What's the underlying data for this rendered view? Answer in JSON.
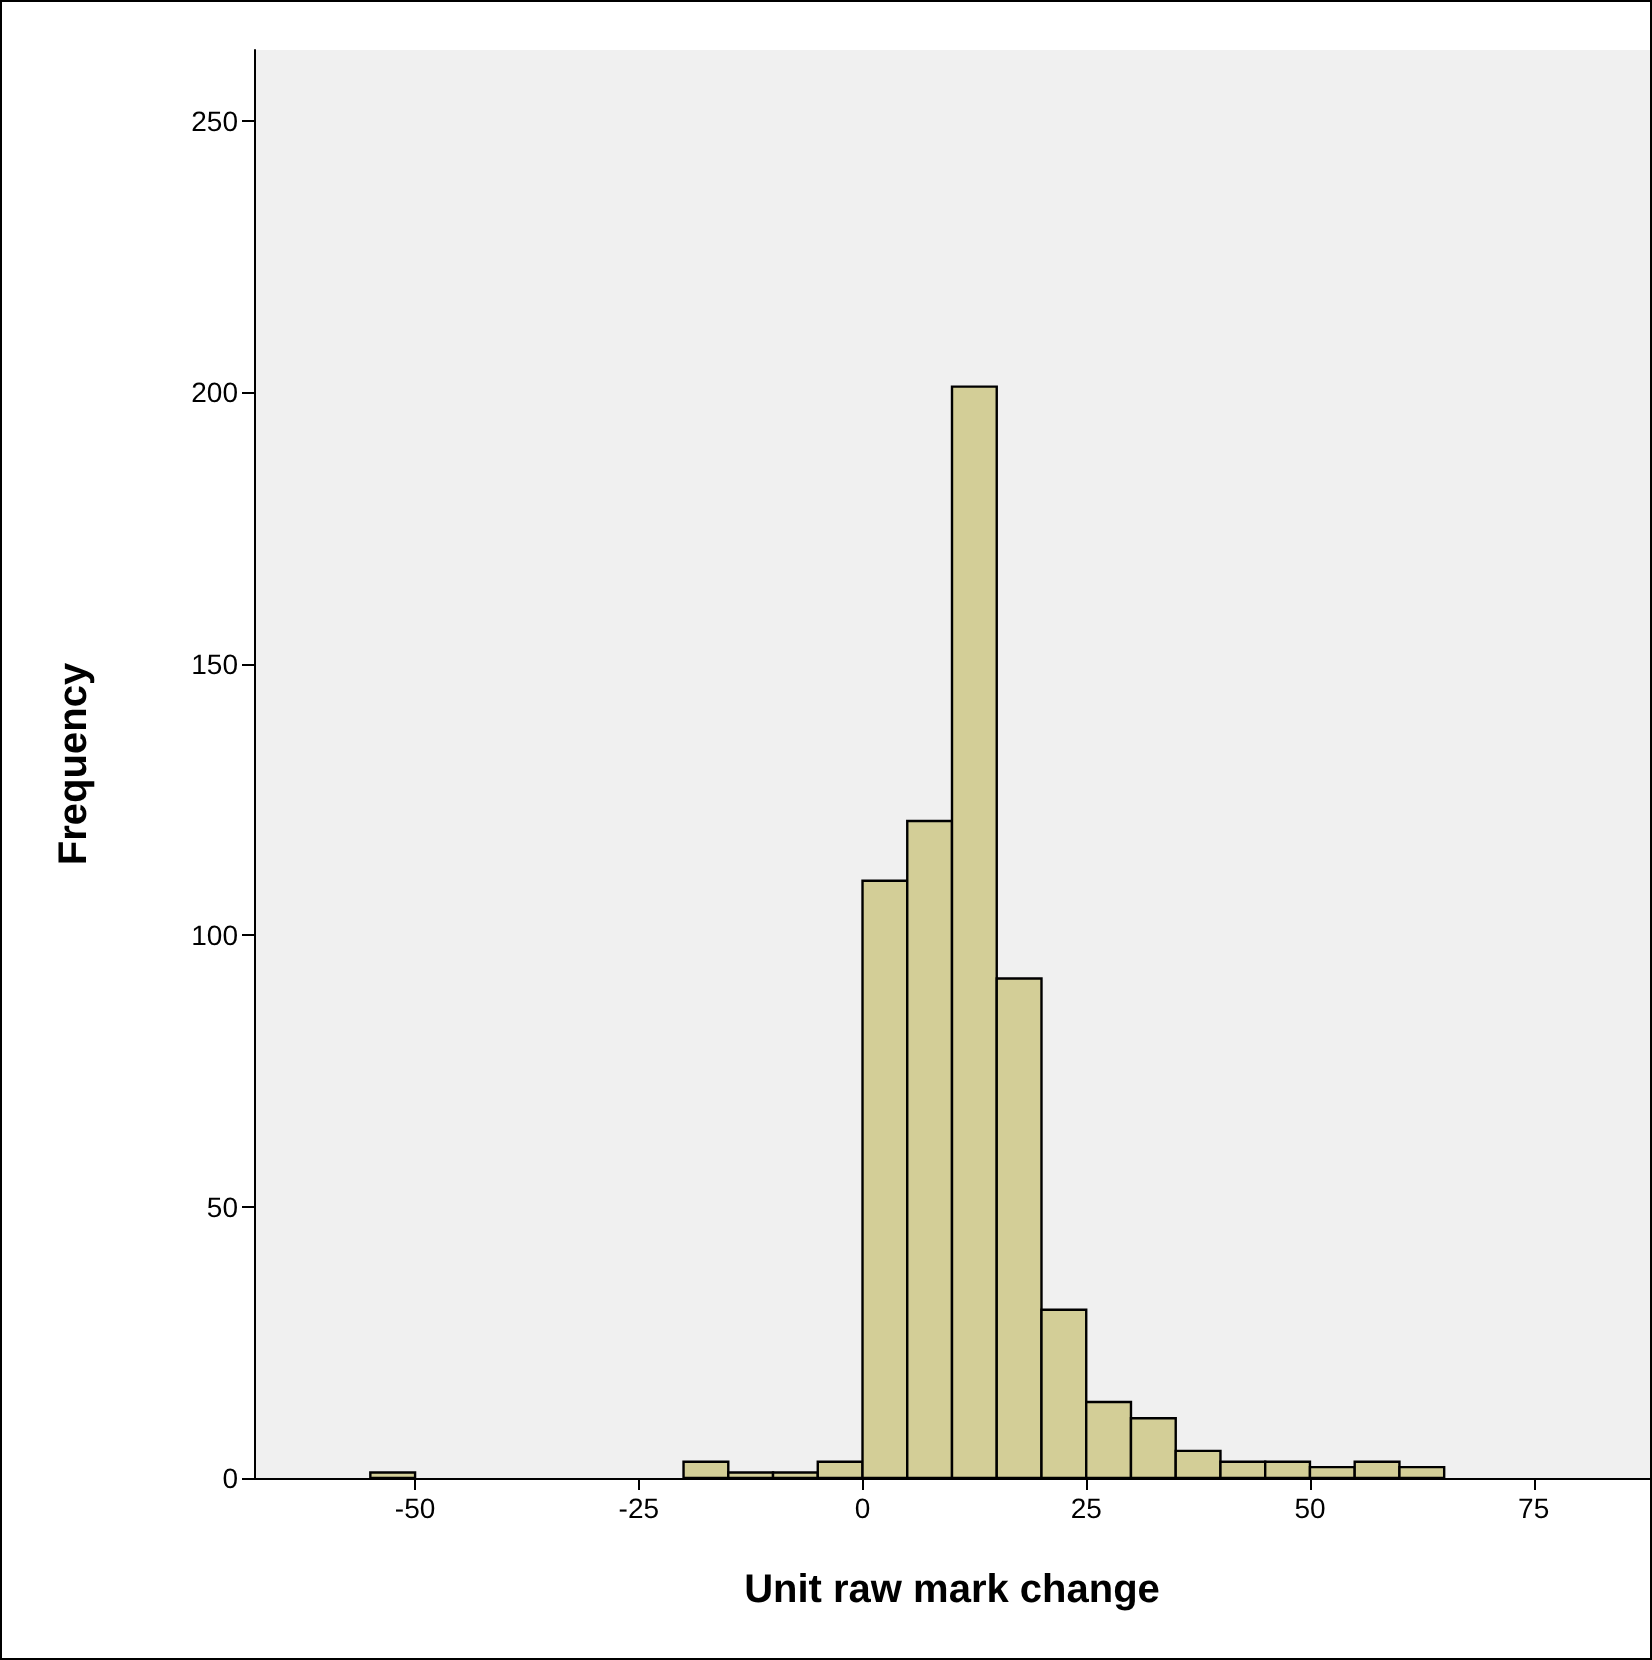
{
  "chart_data": {
    "type": "histogram",
    "xlabel": "Unit raw mark change",
    "ylabel": "Frequency",
    "bins": [
      -55,
      -50,
      -45,
      -40,
      -35,
      -30,
      -25,
      -20,
      -15,
      -10,
      -5,
      0,
      5,
      10,
      15,
      20,
      25,
      30,
      35,
      40,
      45,
      50,
      55,
      60,
      65
    ],
    "values": [
      1,
      0,
      0,
      0,
      0,
      0,
      0,
      3,
      1,
      1,
      3,
      110,
      121,
      201,
      92,
      31,
      14,
      11,
      5,
      3,
      3,
      2,
      3,
      2
    ],
    "color": "#d3ce97",
    "xlim": [
      -68,
      88
    ],
    "xticks": [
      -50,
      -25,
      0,
      25,
      50,
      75
    ],
    "ylim": [
      0,
      263
    ],
    "yticks": [
      0,
      50,
      100,
      150,
      200,
      250
    ],
    "grid": false
  }
}
